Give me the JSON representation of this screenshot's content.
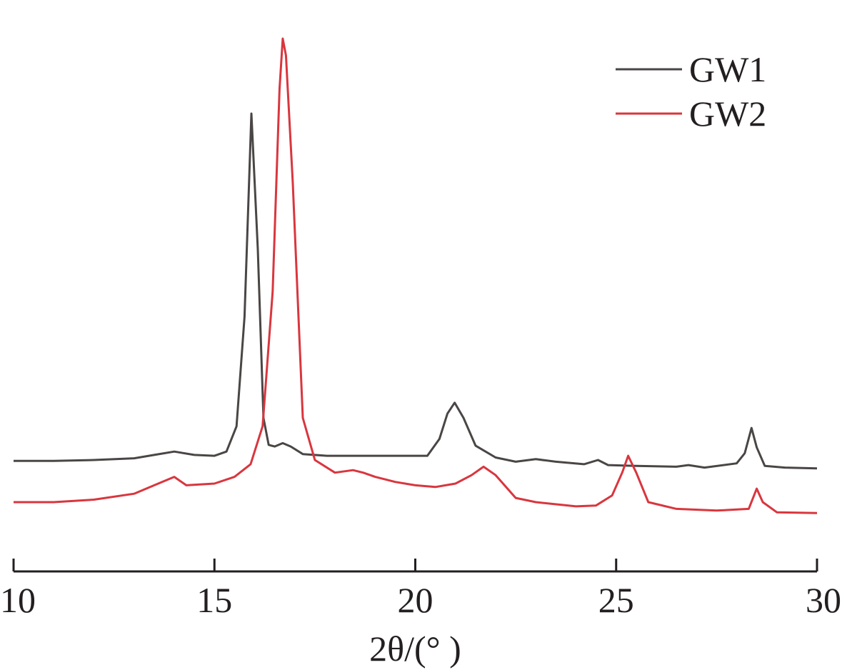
{
  "chart_data": {
    "type": "line",
    "title": "",
    "xlabel": "2θ/(° )",
    "ylabel": "",
    "xlim": [
      10,
      30
    ],
    "x_ticks": [
      "10",
      "15",
      "20",
      "25",
      "30"
    ],
    "grid": false,
    "legend_position": "top-right",
    "y_axis_shown": false,
    "series": [
      {
        "name": "GW1",
        "color": "#4a4645",
        "points": [
          [
            10,
            0.49
          ],
          [
            11,
            0.49
          ],
          [
            12,
            0.5
          ],
          [
            13,
            0.52
          ],
          [
            13.5,
            0.56
          ],
          [
            14,
            0.6
          ],
          [
            14.5,
            0.56
          ],
          [
            15,
            0.55
          ],
          [
            15.3,
            0.6
          ],
          [
            15.55,
            0.9
          ],
          [
            15.75,
            2.2
          ],
          [
            15.92,
            4.61
          ],
          [
            16.08,
            3.0
          ],
          [
            16.22,
            1.0
          ],
          [
            16.35,
            0.68
          ],
          [
            16.5,
            0.66
          ],
          [
            16.7,
            0.7
          ],
          [
            16.9,
            0.66
          ],
          [
            17.2,
            0.57
          ],
          [
            17.8,
            0.55
          ],
          [
            18.5,
            0.55
          ],
          [
            19.5,
            0.55
          ],
          [
            20.3,
            0.55
          ],
          [
            20.6,
            0.75
          ],
          [
            20.8,
            1.05
          ],
          [
            20.98,
            1.18
          ],
          [
            21.2,
            1.0
          ],
          [
            21.5,
            0.67
          ],
          [
            22,
            0.53
          ],
          [
            22.5,
            0.48
          ],
          [
            23,
            0.51
          ],
          [
            23.5,
            0.48
          ],
          [
            24.2,
            0.45
          ],
          [
            24.55,
            0.5
          ],
          [
            24.8,
            0.44
          ],
          [
            25.5,
            0.43
          ],
          [
            26.5,
            0.42
          ],
          [
            26.8,
            0.44
          ],
          [
            27.2,
            0.41
          ],
          [
            28,
            0.46
          ],
          [
            28.2,
            0.58
          ],
          [
            28.37,
            0.88
          ],
          [
            28.5,
            0.65
          ],
          [
            28.7,
            0.43
          ],
          [
            29.2,
            0.41
          ],
          [
            30,
            0.4
          ]
        ]
      },
      {
        "name": "GW2",
        "color": "#d9363e",
        "points": [
          [
            10,
            0.0
          ],
          [
            11,
            0.0
          ],
          [
            12,
            0.03
          ],
          [
            13,
            0.1
          ],
          [
            13.5,
            0.2
          ],
          [
            14,
            0.3
          ],
          [
            14.3,
            0.2
          ],
          [
            15,
            0.22
          ],
          [
            15.5,
            0.3
          ],
          [
            15.9,
            0.45
          ],
          [
            16.2,
            0.9
          ],
          [
            16.45,
            2.5
          ],
          [
            16.62,
            4.9
          ],
          [
            16.7,
            5.5
          ],
          [
            16.78,
            5.3
          ],
          [
            16.95,
            3.8
          ],
          [
            17.2,
            1.0
          ],
          [
            17.5,
            0.5
          ],
          [
            18,
            0.35
          ],
          [
            18.45,
            0.38
          ],
          [
            18.7,
            0.35
          ],
          [
            19,
            0.3
          ],
          [
            19.5,
            0.24
          ],
          [
            20,
            0.2
          ],
          [
            20.5,
            0.18
          ],
          [
            21,
            0.22
          ],
          [
            21.4,
            0.32
          ],
          [
            21.7,
            0.42
          ],
          [
            22,
            0.32
          ],
          [
            22.5,
            0.05
          ],
          [
            23,
            0.0
          ],
          [
            24,
            -0.05
          ],
          [
            24.5,
            -0.04
          ],
          [
            24.9,
            0.08
          ],
          [
            25.15,
            0.35
          ],
          [
            25.3,
            0.55
          ],
          [
            25.5,
            0.35
          ],
          [
            25.8,
            0.0
          ],
          [
            26.5,
            -0.08
          ],
          [
            27.5,
            -0.1
          ],
          [
            28.3,
            -0.08
          ],
          [
            28.5,
            0.16
          ],
          [
            28.65,
            0.0
          ],
          [
            29,
            -0.12
          ],
          [
            30,
            -0.13
          ]
        ]
      }
    ]
  }
}
